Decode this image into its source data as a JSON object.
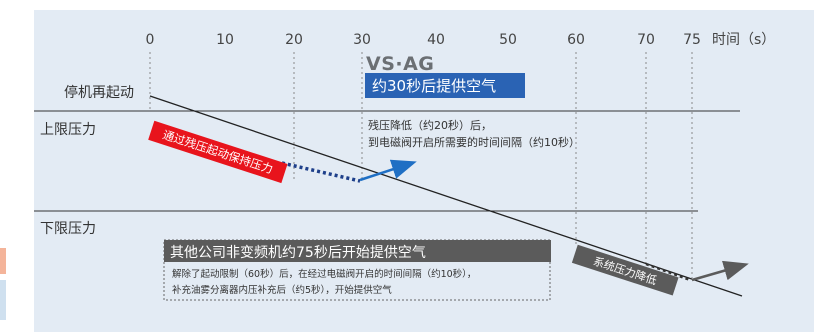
{
  "axis": {
    "ticks": [
      "0",
      "10",
      "20",
      "30",
      "40",
      "50",
      "60",
      "70",
      "75"
    ],
    "unit_label": "时间（s）"
  },
  "levels": {
    "restart": "停机再起动",
    "upper": "上限压力",
    "lower": "下限压力"
  },
  "brand": {
    "logo": "VS·AG",
    "banner": "约30秒后提供空气"
  },
  "callouts": {
    "residual_line1": "残压降低（约20秒）后，",
    "residual_line2": "到电磁阀开启所需要的时间间隔（约10秒）",
    "red_tag": "通过残压起动保持压力",
    "system_tag": "系统压力降低",
    "competitor_title": "其他公司非变频机约75秒后开始提供空气",
    "competitor_line1": "解除了起动限制（60秒）后，在经过电磁阀开启的时间间隔（约10秒），",
    "competitor_line2": "补充油雾分离器内压补充后（约5秒），开始提供空气"
  },
  "colors": {
    "panel": "#e3ebf4",
    "red_tag": "#e8141c",
    "blue_banner": "#2a63b4",
    "dark_tag": "#5b5b5b",
    "arrow_blue": "#1f6fc4"
  }
}
